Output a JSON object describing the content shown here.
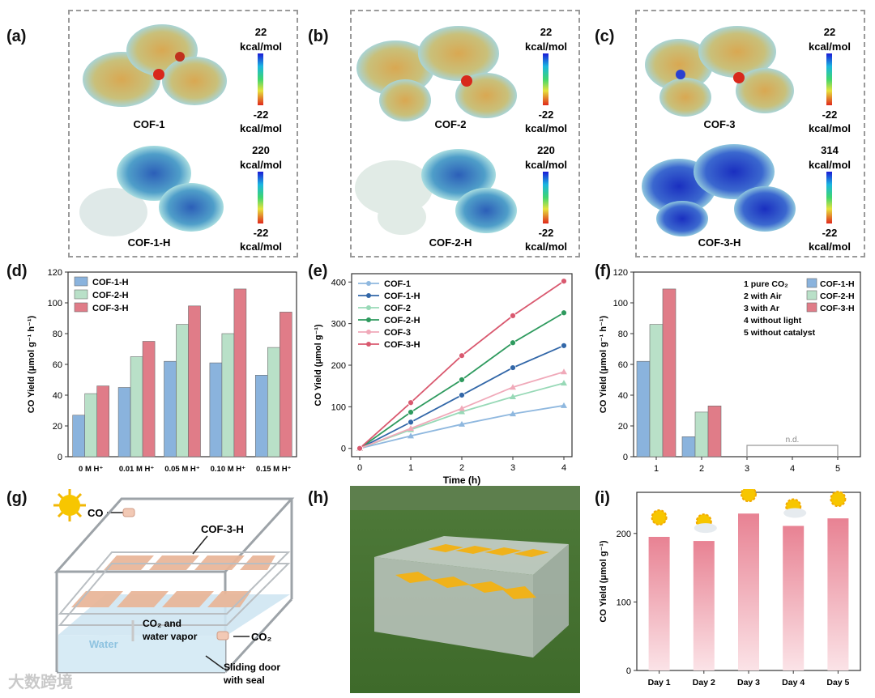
{
  "labels": {
    "a": "(a)",
    "b": "(b)",
    "c": "(c)",
    "d": "(d)",
    "e": "(e)",
    "f": "(f)",
    "g": "(g)",
    "h": "(h)",
    "i": "(i)"
  },
  "esp": [
    {
      "top": {
        "name": "COF-1",
        "max": "22",
        "min": "-22",
        "unit": "kcal/mol"
      },
      "bottom": {
        "name": "COF-1-H",
        "max": "220",
        "min": "-22",
        "unit": "kcal/mol"
      }
    },
    {
      "top": {
        "name": "COF-2",
        "max": "22",
        "min": "-22",
        "unit": "kcal/mol"
      },
      "bottom": {
        "name": "COF-2-H",
        "max": "220",
        "min": "-22",
        "unit": "kcal/mol"
      }
    },
    {
      "top": {
        "name": "COF-3",
        "max": "22",
        "min": "-22",
        "unit": "kcal/mol"
      },
      "bottom": {
        "name": "COF-3-H",
        "max": "314",
        "min": "-22",
        "unit": "kcal/mol"
      }
    }
  ],
  "colors": {
    "cof1h": "#8ab3dd",
    "cof2h": "#b9e0c8",
    "cof3h": "#e07c88",
    "cof1": "#8fb8df",
    "cof1h_line": "#3267a8",
    "cof2": "#98d9b7",
    "cof2h_line": "#2e9a5e",
    "cof3": "#f0a9b9",
    "cof3h_line": "#d9596f",
    "day_bar": "#e88293"
  },
  "chart_data": [
    {
      "panel": "d",
      "type": "bar",
      "categories": [
        "0 M H⁺",
        "0.01 M H⁺",
        "0.05 M H⁺",
        "0.10 M H⁺",
        "0.15 M H⁺"
      ],
      "series": [
        {
          "name": "COF-1-H",
          "values": [
            27,
            45,
            62,
            61,
            53
          ]
        },
        {
          "name": "COF-2-H",
          "values": [
            41,
            65,
            86,
            80,
            71
          ]
        },
        {
          "name": "COF-3-H",
          "values": [
            46,
            75,
            98,
            109,
            94
          ]
        }
      ],
      "ylabel": "CO Yield (μmol g⁻¹ h⁻¹)",
      "ylim": [
        0,
        120
      ],
      "yticks": [
        0,
        20,
        40,
        60,
        80,
        100,
        120
      ],
      "legend": "top-left"
    },
    {
      "panel": "e",
      "type": "line",
      "x": [
        0,
        1,
        2,
        3,
        4
      ],
      "series": [
        {
          "name": "COF-1",
          "values": [
            0,
            30,
            58,
            83,
            103
          ]
        },
        {
          "name": "COF-1-H",
          "values": [
            0,
            63,
            128,
            194,
            247
          ]
        },
        {
          "name": "COF-2",
          "values": [
            0,
            45,
            88,
            124,
            157
          ]
        },
        {
          "name": "COF-2-H",
          "values": [
            0,
            87,
            165,
            254,
            326
          ]
        },
        {
          "name": "COF-3",
          "values": [
            0,
            48,
            96,
            147,
            184
          ]
        },
        {
          "name": "COF-3-H",
          "values": [
            0,
            110,
            223,
            319,
            402
          ]
        }
      ],
      "xlabel": "Time (h)",
      "ylabel": "CO Yield (μmol g⁻¹)",
      "ylim": [
        -20,
        420
      ],
      "yticks": [
        0,
        100,
        200,
        300,
        400
      ],
      "xticks": [
        0,
        1,
        2,
        3,
        4
      ],
      "legend": "top-left"
    },
    {
      "panel": "f",
      "type": "bar",
      "categories": [
        "1",
        "2",
        "3",
        "4",
        "5"
      ],
      "series": [
        {
          "name": "COF-1-H",
          "values": [
            62,
            13,
            0,
            0,
            0
          ]
        },
        {
          "name": "COF-2-H",
          "values": [
            86,
            29,
            0,
            0,
            0
          ]
        },
        {
          "name": "COF-3-H",
          "values": [
            109,
            33,
            0,
            0,
            0
          ]
        }
      ],
      "conditions": [
        "1 pure CO₂",
        "2 with Air",
        "3 with Ar",
        "4 without light",
        "5 without catalyst"
      ],
      "annotation": "n.d.",
      "ylabel": "CO Yield (μmol g⁻¹ h⁻¹)",
      "ylim": [
        0,
        120
      ],
      "yticks": [
        0,
        20,
        40,
        60,
        80,
        100,
        120
      ],
      "legend": "top-right"
    },
    {
      "panel": "i",
      "type": "bar",
      "categories": [
        "Day 1",
        "Day 2",
        "Day 3",
        "Day 4",
        "Day 5"
      ],
      "values": [
        195,
        189,
        229,
        211,
        222
      ],
      "weather": [
        "sunny",
        "partly-cloudy",
        "sunny",
        "partly-cloudy",
        "sunny"
      ],
      "ylabel": "CO Yield (μmol g⁻¹)",
      "ylim": [
        0,
        260
      ],
      "yticks": [
        0,
        100,
        200
      ]
    }
  ],
  "schematic": {
    "co": "CO",
    "cof": "COF-3-H",
    "water": "Water",
    "co2_vapor_1": "CO₂ and",
    "co2_vapor_2": "water vapor",
    "co2_in": "CO₂",
    "door_1": "Sliding door",
    "door_2": "with seal"
  },
  "watermark": "大数跨境"
}
